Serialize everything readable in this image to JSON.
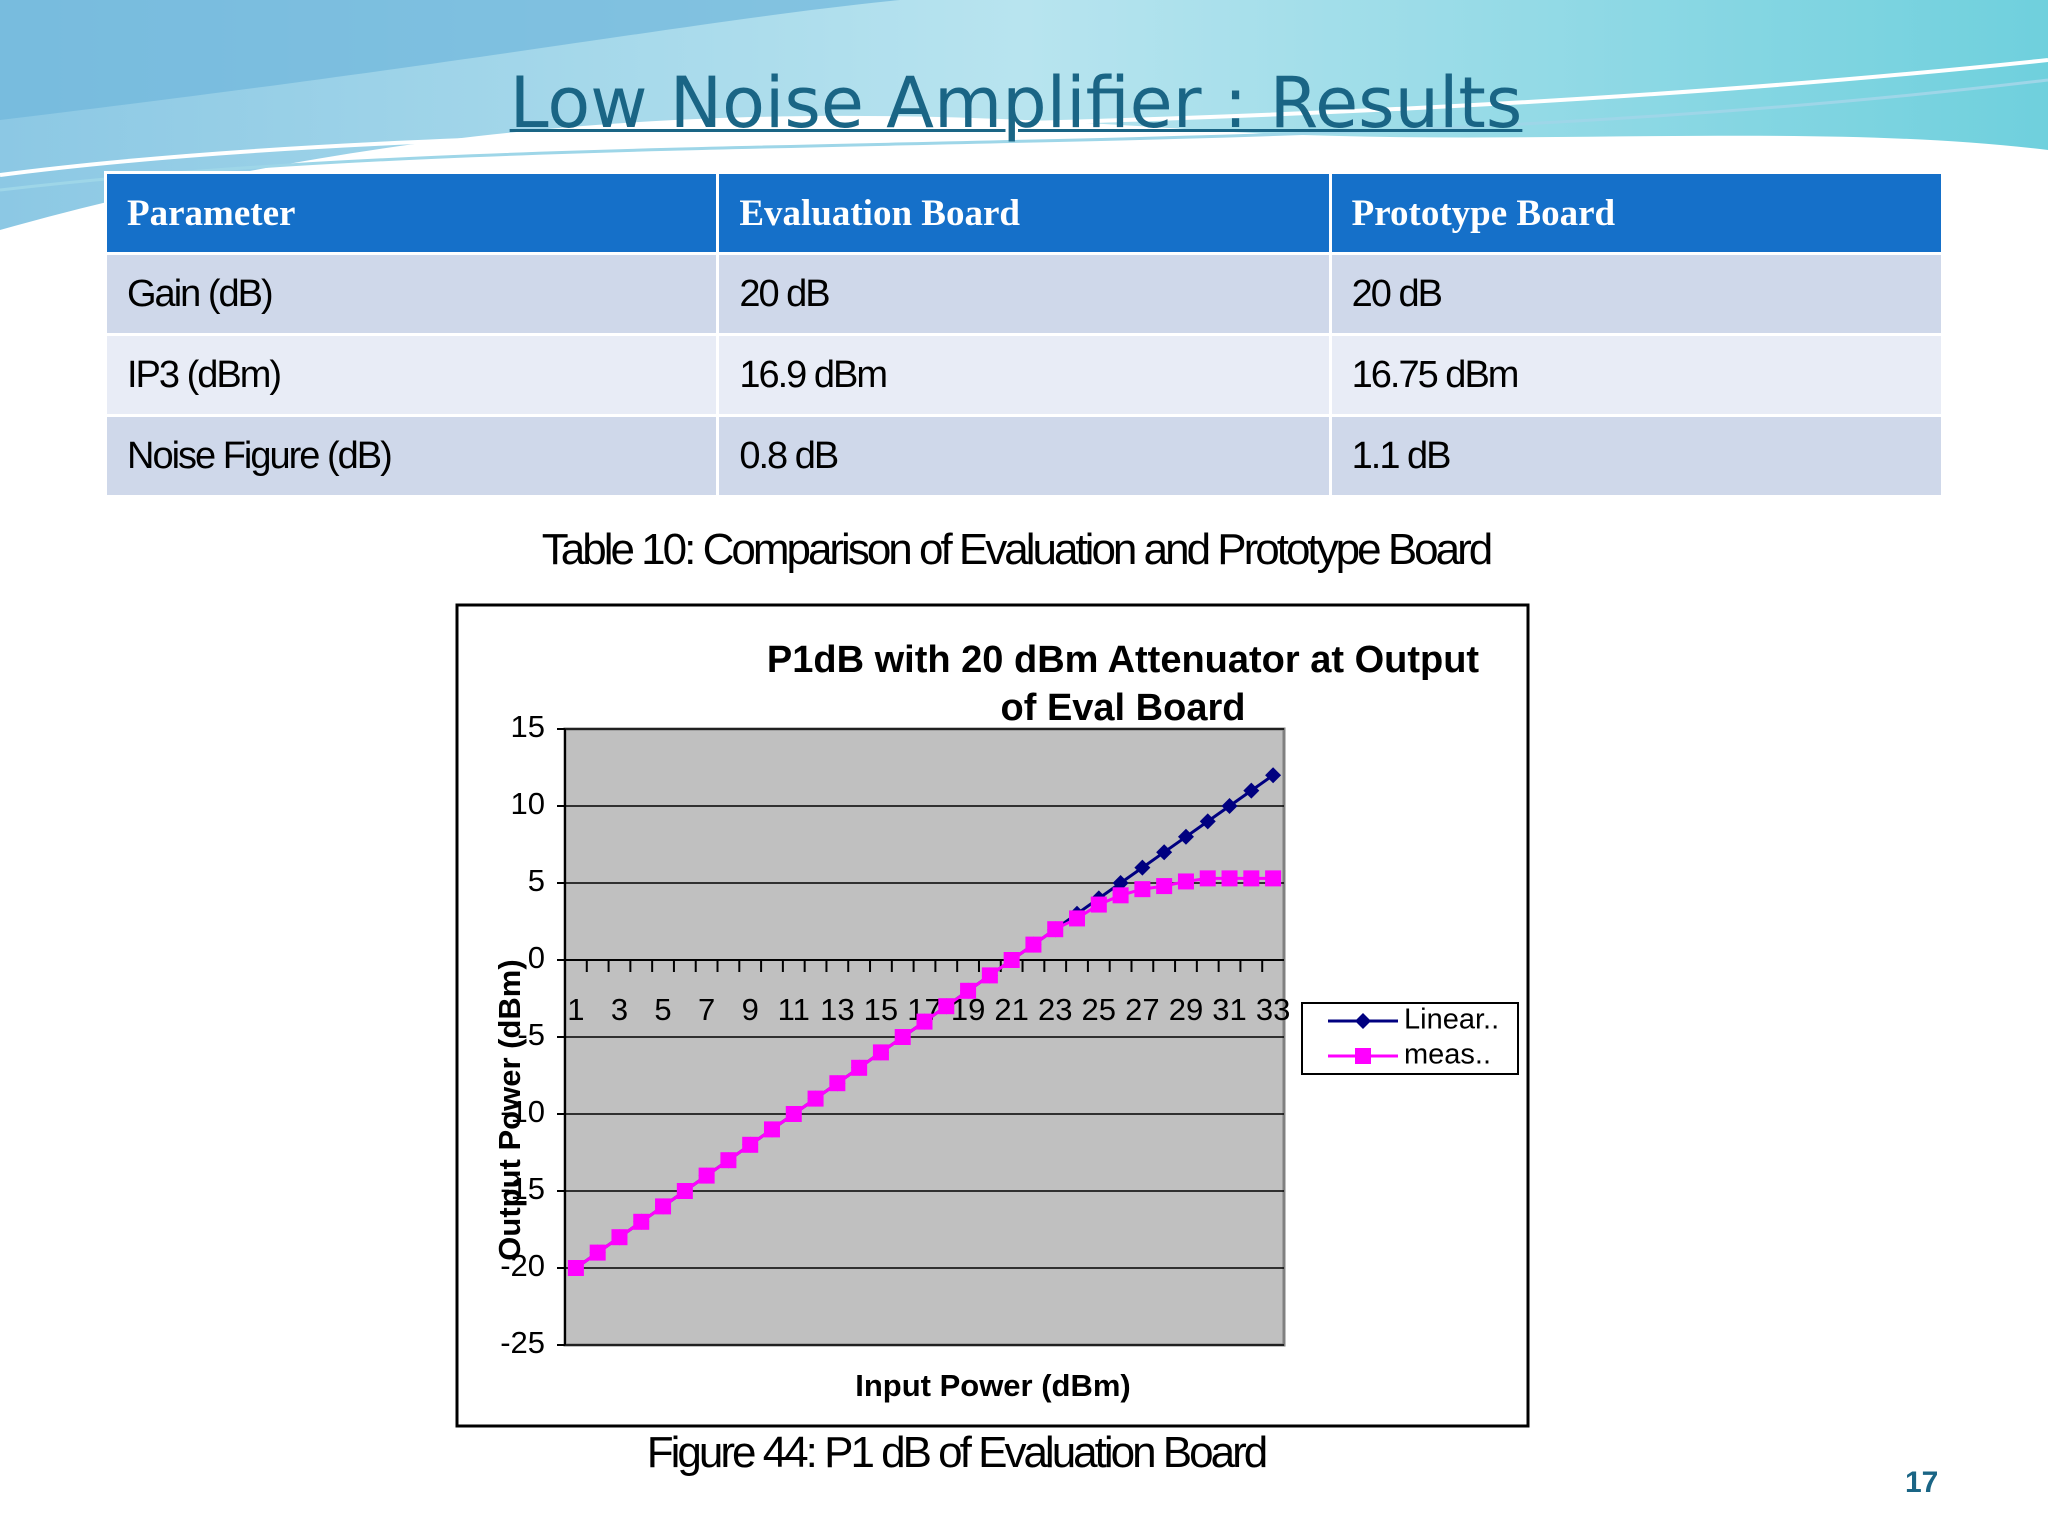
{
  "header": {
    "title": "Low Noise Amplifier : Results"
  },
  "table": {
    "columns": [
      "Parameter",
      "Evaluation Board",
      "Prototype Board"
    ],
    "rows": [
      [
        "Gain (dB)",
        "20 dB",
        "20 dB"
      ],
      [
        "IP3 (dBm)",
        "16.9 dBm",
        "16.75 dBm"
      ],
      [
        "Noise Figure (dB)",
        "0.8 dB",
        "1.1 dB"
      ]
    ],
    "caption": "Table 10: Comparison of Evaluation and Prototype Board"
  },
  "chart_data": {
    "type": "line",
    "title": [
      "P1dB with 20 dBm Attenuator at Output",
      "of Eval Board"
    ],
    "x_label": "Input Power (dBm)",
    "y_label": "Output Power (dBm)",
    "categories": [
      1,
      null,
      3,
      null,
      5,
      null,
      7,
      null,
      9,
      null,
      11,
      null,
      13,
      null,
      15,
      null,
      17,
      null,
      19,
      null,
      21,
      null,
      23,
      null,
      25,
      null,
      27,
      null,
      29,
      null,
      31,
      null,
      33
    ],
    "series": [
      {
        "name": "Linear..",
        "color": "#000080",
        "marker": "diamond",
        "values": [
          -20,
          -19,
          -18,
          -17,
          -16,
          -15,
          -14,
          -13,
          -12,
          -11,
          -10,
          -9,
          -8,
          -7,
          -6,
          -5,
          -4,
          -3,
          -2,
          -1,
          0,
          1,
          2,
          3,
          4,
          5,
          6,
          7,
          8,
          9,
          10,
          11,
          12
        ]
      },
      {
        "name": "meas..",
        "color": "#ff00ff",
        "marker": "square",
        "values": [
          -20,
          -19,
          -18,
          -17,
          -16,
          -15,
          -14,
          -13,
          -12,
          -11,
          -10,
          -9,
          -8,
          -7,
          -6,
          -5,
          -4,
          -3,
          -2,
          -1,
          0,
          1,
          2,
          2.7,
          3.6,
          4.2,
          4.6,
          4.8,
          5.1,
          5.3,
          5.3,
          5.3,
          5.3
        ]
      }
    ],
    "ylim": [
      -25,
      15
    ],
    "yticks": [
      -25,
      -20,
      -15,
      -10,
      -5,
      0,
      5,
      10,
      15
    ],
    "grid": true,
    "legend": "right",
    "plot_background": "#c0c0c0",
    "figure_caption": "Figure 44: P1 dB of Evaluation Board"
  },
  "footer": {
    "page_number": "17"
  }
}
